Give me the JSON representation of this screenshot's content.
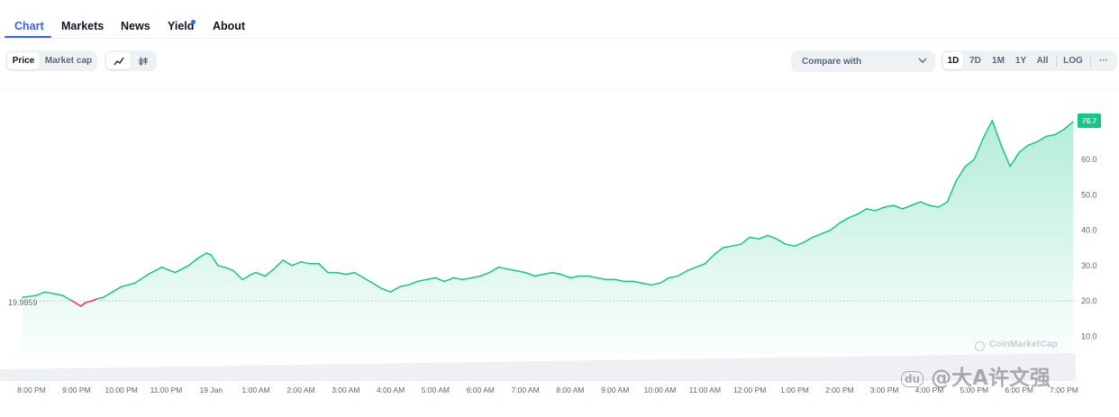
{
  "tabs": [
    {
      "label": "Chart",
      "active": true
    },
    {
      "label": "Markets",
      "active": false
    },
    {
      "label": "News",
      "active": false
    },
    {
      "label": "Yield",
      "active": false
    },
    {
      "label": "About",
      "active": false
    }
  ],
  "toolbar": {
    "price_label": "Price",
    "market_cap_label": "Market cap",
    "line_icon": "line-chart-icon",
    "candle_icon": "candlestick-icon",
    "compare_label": "Compare with",
    "ranges": [
      "1D",
      "7D",
      "1M",
      "1Y",
      "All"
    ],
    "log_label": "LOG",
    "more_label": "···"
  },
  "colors": {
    "accent": "#3861fb",
    "up": "#16c784",
    "down": "#ea3943",
    "axis_text": "#58667e"
  },
  "chart_data": {
    "type": "area",
    "current_price_label": "70.7",
    "base_price_label": "19.9859",
    "base_value": 19.9859,
    "y_ticks": [
      {
        "value": 10,
        "label": "10.0"
      },
      {
        "value": 20,
        "label": "20.0"
      },
      {
        "value": 30,
        "label": "30.0"
      },
      {
        "value": 40,
        "label": "40.0"
      },
      {
        "value": 50,
        "label": "50.0"
      },
      {
        "value": 60,
        "label": "60.0"
      }
    ],
    "ylim": [
      0,
      80
    ],
    "x_ticks": [
      "8:00 PM",
      "9:00 PM",
      "10:00 PM",
      "11:00 PM",
      "19 Jan",
      "1:00 AM",
      "2:00 AM",
      "3:00 AM",
      "4:00 AM",
      "5:00 AM",
      "6:00 AM",
      "7:00 AM",
      "8:00 AM",
      "9:00 AM",
      "10:00 AM",
      "11:00 AM",
      "12:00 PM",
      "1:00 PM",
      "2:00 PM",
      "3:00 PM",
      "4:00 PM",
      "5:00 PM",
      "6:00 PM",
      "7:00 PM"
    ],
    "x_hours": [
      20,
      21,
      22,
      23,
      24,
      25,
      26,
      27,
      28,
      29,
      30,
      31,
      32,
      33,
      34,
      35,
      36,
      37,
      38,
      39,
      40,
      41,
      42,
      43
    ],
    "series": [
      {
        "x": [
          19.8,
          20.1,
          20.3,
          20.5,
          20.7,
          20.9,
          21.1,
          21.2,
          21.3,
          21.45,
          21.6,
          21.8,
          22.0,
          22.3,
          22.6,
          22.9,
          23.2,
          23.5,
          23.7,
          23.9,
          24.0,
          24.15,
          24.3,
          24.5,
          24.7,
          24.9,
          25.0,
          25.2,
          25.4,
          25.6,
          25.8,
          26.0,
          26.2,
          26.4,
          26.6,
          26.8,
          27.0,
          27.2,
          27.4,
          27.6,
          27.8,
          28.0,
          28.2,
          28.4,
          28.6,
          28.8,
          29.0,
          29.2,
          29.4,
          29.6,
          29.8,
          30.0,
          30.2,
          30.4,
          30.6,
          30.8,
          31.0,
          31.2,
          31.4,
          31.6,
          31.8,
          32.0,
          32.2,
          32.4,
          32.6,
          32.8,
          33.0,
          33.2,
          33.4,
          33.6,
          33.8,
          34.0,
          34.2,
          34.4,
          34.6,
          34.8,
          35.0,
          35.2,
          35.4,
          35.6,
          35.8,
          36.0,
          36.2,
          36.4,
          36.6,
          36.8,
          37.0,
          37.2,
          37.4,
          37.6,
          37.8,
          38.0,
          38.2,
          38.4,
          38.6,
          38.8,
          39.0,
          39.2,
          39.4,
          39.6,
          39.8,
          40.0,
          40.2,
          40.4,
          40.6,
          40.8,
          41.0,
          41.2,
          41.4,
          41.6,
          41.8,
          42.0,
          42.2,
          42.4,
          42.6,
          42.8,
          43.0,
          43.2
        ],
        "y": [
          21.0,
          21.5,
          22.5,
          22.0,
          21.5,
          20.0,
          18.5,
          19.5,
          19.8,
          20.5,
          21.0,
          22.5,
          24.0,
          25.0,
          27.5,
          29.5,
          28.0,
          30.0,
          32.0,
          33.5,
          33.0,
          30.0,
          29.5,
          28.5,
          26.0,
          27.5,
          28.0,
          27.0,
          29.0,
          31.5,
          30.0,
          31.0,
          30.5,
          30.5,
          28.0,
          28.0,
          27.5,
          28.0,
          26.5,
          25.0,
          23.5,
          22.5,
          24.0,
          24.5,
          25.5,
          26.0,
          26.5,
          25.5,
          26.5,
          26.0,
          26.5,
          27.0,
          28.0,
          29.5,
          29.0,
          28.5,
          28.0,
          27.0,
          27.5,
          28.0,
          27.5,
          26.5,
          27.0,
          27.0,
          26.5,
          26.0,
          26.0,
          25.5,
          25.5,
          25.0,
          24.5,
          25.0,
          26.5,
          27.0,
          28.5,
          29.5,
          30.5,
          33.0,
          35.0,
          35.5,
          36.0,
          38.0,
          37.5,
          38.5,
          37.5,
          36.0,
          35.5,
          36.5,
          38.0,
          39.0,
          40.0,
          42.0,
          43.5,
          44.5,
          46.0,
          45.5,
          46.5,
          47.0,
          46.0,
          47.0,
          48.0,
          47.0,
          46.5,
          48.0,
          54.0,
          58.0,
          60.0,
          66.0,
          71.0,
          64.0,
          58.0,
          62.0,
          64.0,
          65.0,
          66.5,
          67.0,
          68.5,
          70.7
        ]
      }
    ]
  },
  "watermark": {
    "brand": "CoinMarketCap",
    "weibo": "@大A许文强",
    "weibo_logo": "du"
  }
}
